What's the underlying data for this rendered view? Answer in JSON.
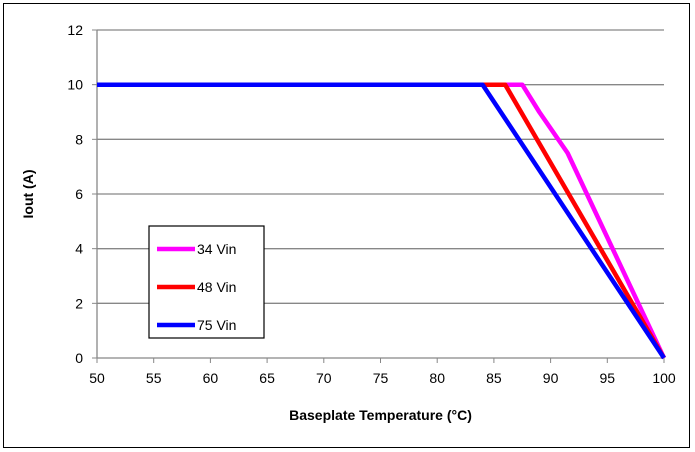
{
  "chart_data": {
    "type": "line",
    "title": "",
    "xlabel": "Baseplate Temperature (°C)",
    "ylabel": "Iout (A)",
    "xlim": [
      50,
      100
    ],
    "ylim": [
      0,
      12
    ],
    "xticks": [
      50,
      55,
      60,
      65,
      70,
      75,
      80,
      85,
      90,
      95,
      100
    ],
    "yticks": [
      0,
      2,
      4,
      6,
      8,
      10,
      12
    ],
    "grid": "horizontal",
    "legend_position": "lower-left",
    "series": [
      {
        "name": "34 Vin",
        "color": "#ff00ff",
        "x": [
          50,
          87.5,
          89,
          91.5,
          100
        ],
        "y": [
          10,
          10,
          9,
          7.5,
          0
        ]
      },
      {
        "name": "48 Vin",
        "color": "#ff0000",
        "x": [
          50,
          86,
          100
        ],
        "y": [
          10,
          10,
          0
        ]
      },
      {
        "name": "75 Vin",
        "color": "#0000ff",
        "x": [
          50,
          84,
          100
        ],
        "y": [
          10,
          10,
          0
        ]
      }
    ]
  }
}
